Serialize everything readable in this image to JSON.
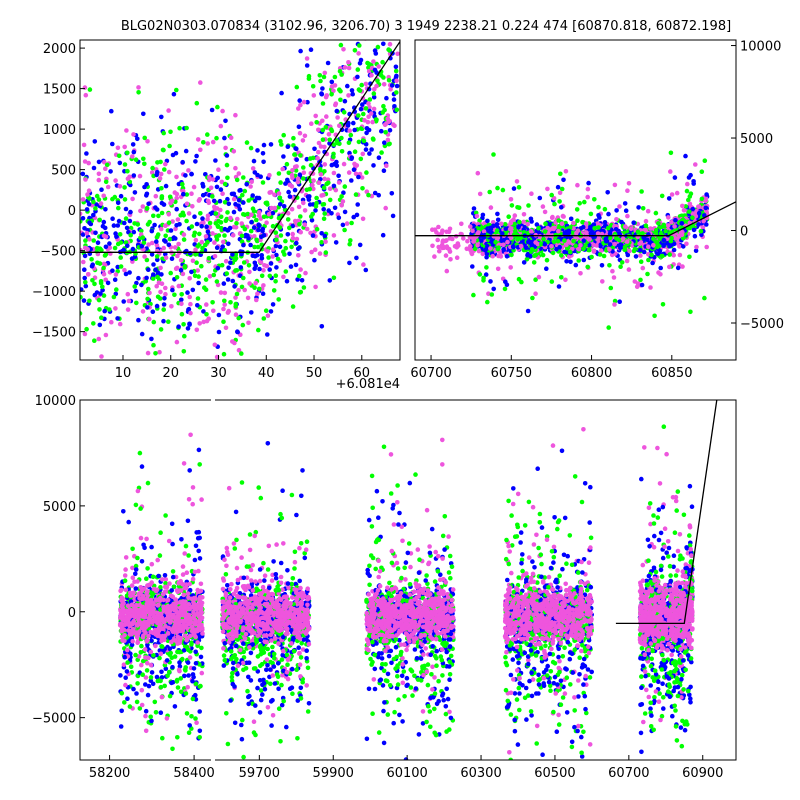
{
  "title": "BLG02N0303.070834 (3102.96, 3206.70)    3 1949 2238.21 0.224 474 [60870.818, 60872.198]",
  "colors": {
    "blue": "#0000ff",
    "green": "#00ff00",
    "magenta": "#ee55dd",
    "line": "#000000"
  },
  "chart_data": [
    {
      "type": "scatter",
      "name": "top-left-zoom",
      "xlim": [
        1,
        68
      ],
      "ylim": [
        -1850,
        2100
      ],
      "xticks": [
        10,
        20,
        30,
        40,
        50,
        60
      ],
      "xtick_labels": [
        "10",
        "20",
        "30",
        "40",
        "50",
        "60"
      ],
      "yticks": [
        -1500,
        -1000,
        -500,
        0,
        500,
        1000,
        1500,
        2000
      ],
      "ytick_labels": [
        "−1500",
        "−1000",
        "−500",
        "0",
        "500",
        "1000",
        "1500",
        "2000"
      ],
      "y_axis_side": "left",
      "offset_label": "+6.081e4",
      "model_line": [
        [
          1,
          -520
        ],
        [
          38.5,
          -520
        ],
        [
          68,
          2080
        ]
      ],
      "series": [
        {
          "name": "blue",
          "color": "#0000ff"
        },
        {
          "name": "green",
          "color": "#00ff00"
        },
        {
          "name": "magenta",
          "color": "#ee55dd"
        }
      ]
    },
    {
      "type": "scatter",
      "name": "top-right",
      "xlim": [
        60690,
        60890
      ],
      "ylim": [
        -7000,
        10300
      ],
      "xticks": [
        60700,
        60750,
        60800,
        60850
      ],
      "xtick_labels": [
        "60700",
        "60750",
        "60800",
        "60850"
      ],
      "yticks": [
        -5000,
        0,
        5000,
        10000
      ],
      "ytick_labels": [
        "−5000",
        "0",
        "5000",
        "10000"
      ],
      "y_axis_side": "right",
      "model_line": [
        [
          60690,
          -280
        ],
        [
          60848,
          -280
        ],
        [
          60890,
          1550
        ]
      ],
      "series": [
        {
          "name": "blue",
          "color": "#0000ff"
        },
        {
          "name": "green",
          "color": "#00ff00"
        },
        {
          "name": "magenta",
          "color": "#ee55dd"
        }
      ]
    },
    {
      "type": "scatter",
      "name": "bottom-full",
      "broken_axis": true,
      "ylim": [
        -7000,
        10000
      ],
      "yticks": [
        -5000,
        0,
        5000,
        10000
      ],
      "ytick_labels": [
        "−5000",
        "0",
        "5000",
        "10000"
      ],
      "y_axis_side": "left",
      "segments": [
        {
          "xlim": [
            58130,
            58440
          ],
          "xticks": [
            58200,
            58400
          ],
          "xtick_labels": [
            "58200",
            "58400"
          ]
        },
        {
          "xlim": [
            59580,
            60990
          ],
          "xticks": [
            59700,
            59900,
            60100,
            60300,
            60500,
            60700,
            60900
          ],
          "xtick_labels": [
            "59700",
            "59900",
            "60100",
            "60300",
            "60500",
            "60700",
            "60900"
          ]
        }
      ],
      "seasons": [
        [
          58225,
          58420
        ],
        [
          59600,
          59835
        ],
        [
          59990,
          60225
        ],
        [
          60365,
          60600
        ],
        [
          60730,
          60872
        ]
      ],
      "model_line": [
        [
          60665,
          -550
        ],
        [
          60850,
          -550
        ],
        [
          60938,
          10000
        ]
      ],
      "series": [
        {
          "name": "blue",
          "color": "#0000ff"
        },
        {
          "name": "green",
          "color": "#00ff00"
        },
        {
          "name": "magenta",
          "color": "#ee55dd"
        }
      ]
    }
  ]
}
